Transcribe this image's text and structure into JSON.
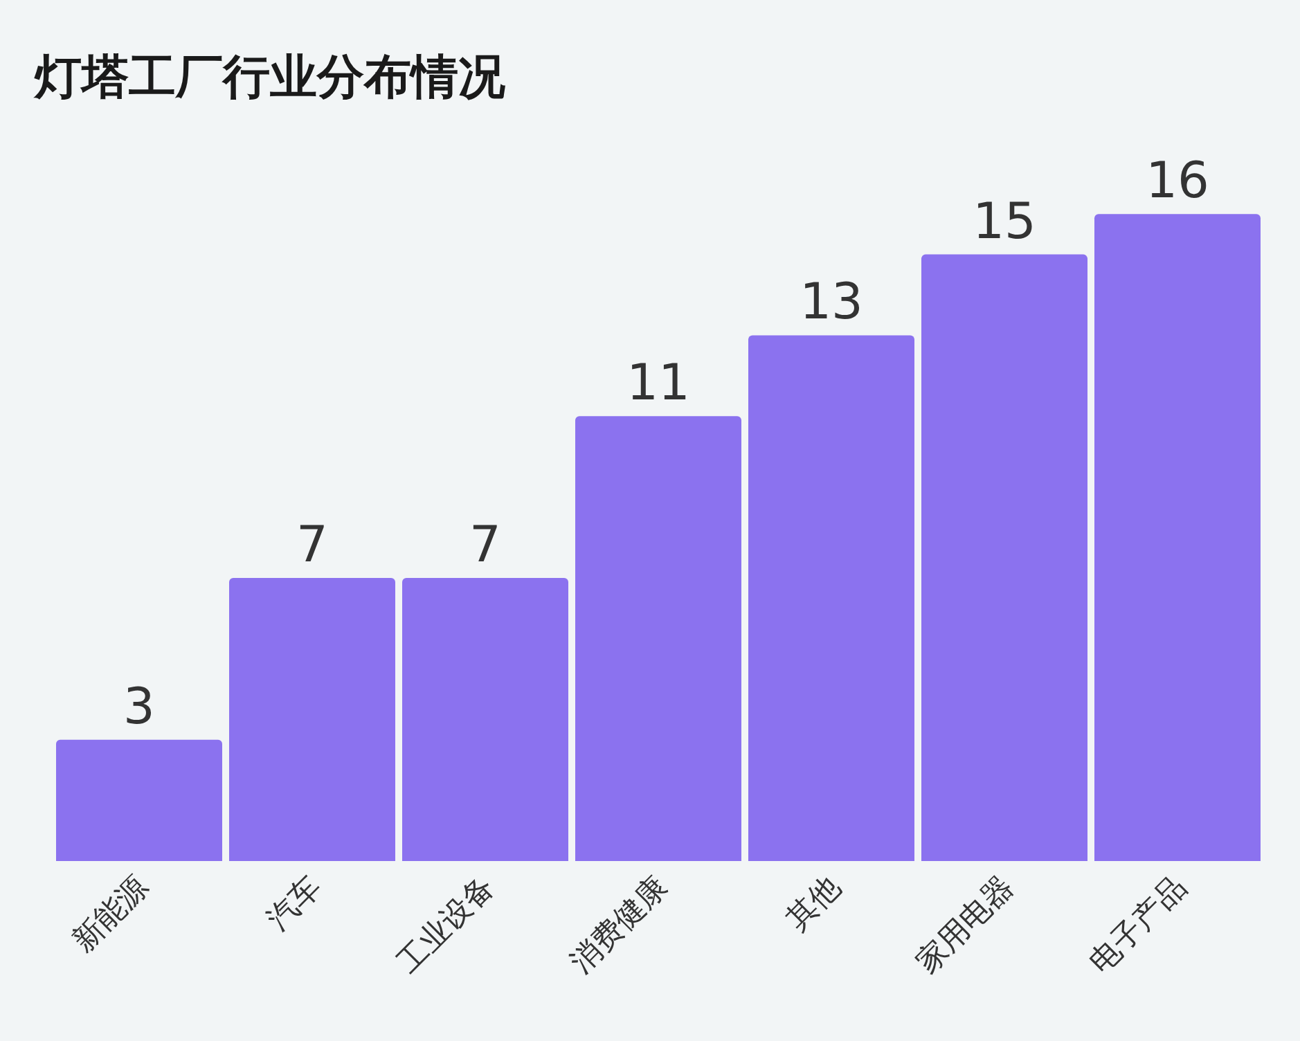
{
  "chart_data": {
    "type": "bar",
    "title": "灯塔工厂行业分布情况",
    "categories": [
      "新能源",
      "汽车",
      "工业设备",
      "消费健康",
      "其他",
      "家用电器",
      "电子产品"
    ],
    "values": [
      3,
      7,
      7,
      11,
      13,
      15,
      16
    ],
    "color": "#8b72ef",
    "data_labels": true
  }
}
